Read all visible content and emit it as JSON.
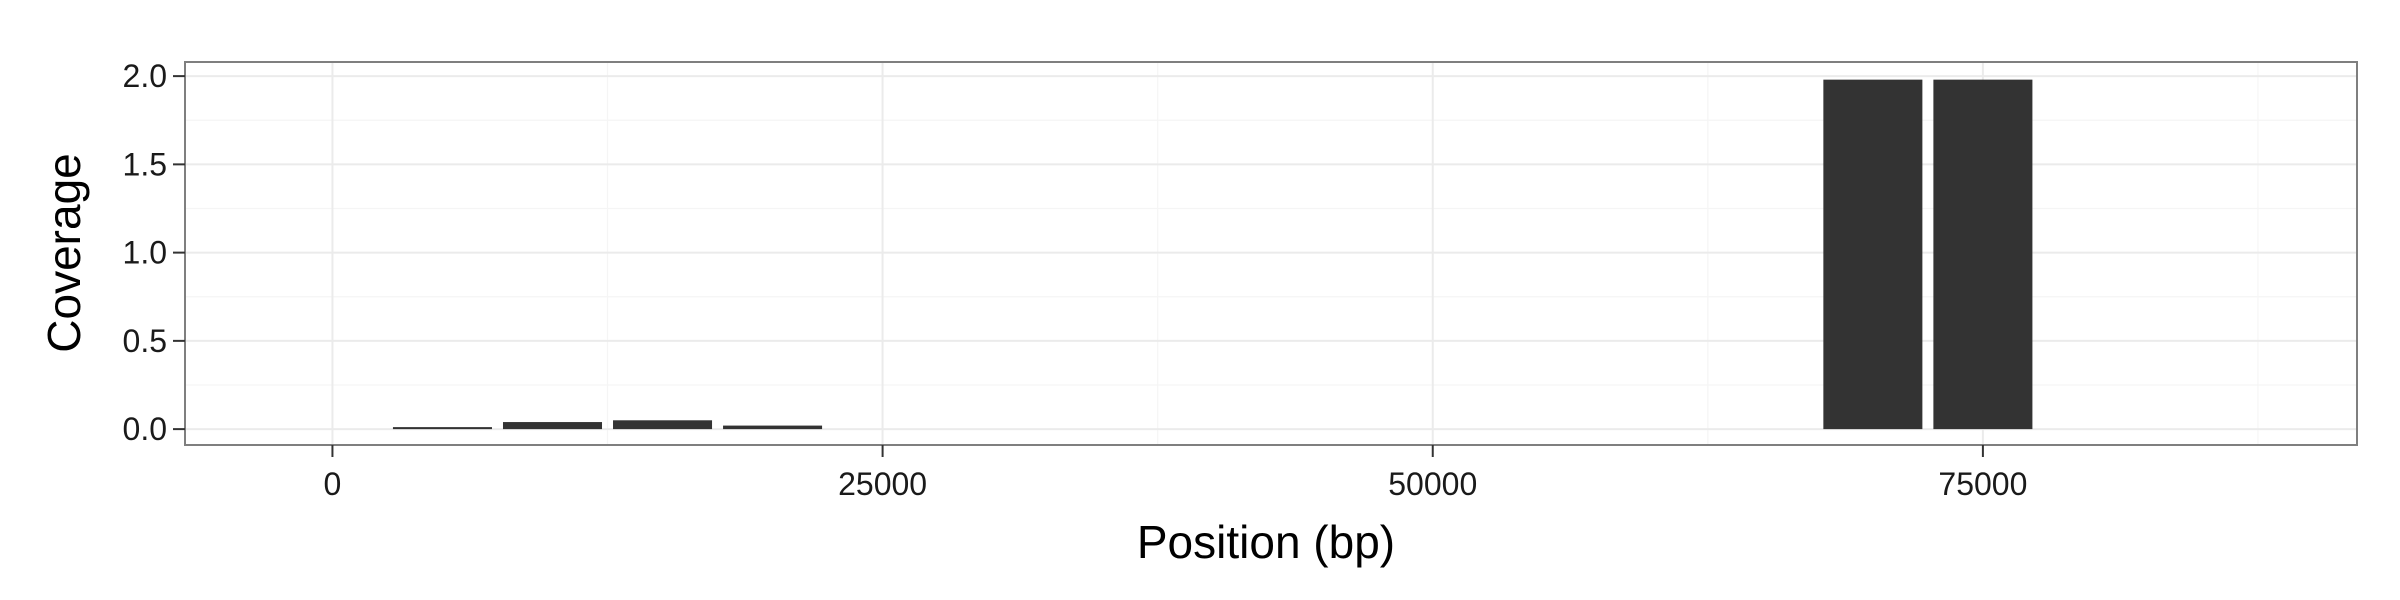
{
  "chart_data": {
    "type": "bar",
    "xlabel": "Position (bp)",
    "ylabel": "Coverage",
    "x": [
      5000,
      10000,
      15000,
      20000,
      70000,
      75000
    ],
    "values": [
      0.01,
      0.04,
      0.05,
      0.02,
      1.98,
      1.98
    ],
    "bin_width": 5000,
    "xlim": [
      -6700,
      92000
    ],
    "ylim": [
      -0.09,
      2.08
    ],
    "xticks": [
      0,
      25000,
      50000,
      75000
    ],
    "xtick_labels": [
      "0",
      "25000",
      "50000",
      "75000"
    ],
    "yticks": [
      0.0,
      0.5,
      1.0,
      1.5,
      2.0
    ],
    "ytick_labels": [
      "0.0",
      "0.5",
      "1.0",
      "1.5",
      "2.0"
    ],
    "grid": true,
    "colors": {
      "bar": "#333333",
      "panel_border": "#7f7f7f",
      "grid_major": "#ebebeb",
      "grid_minor": "#f5f5f5"
    }
  }
}
